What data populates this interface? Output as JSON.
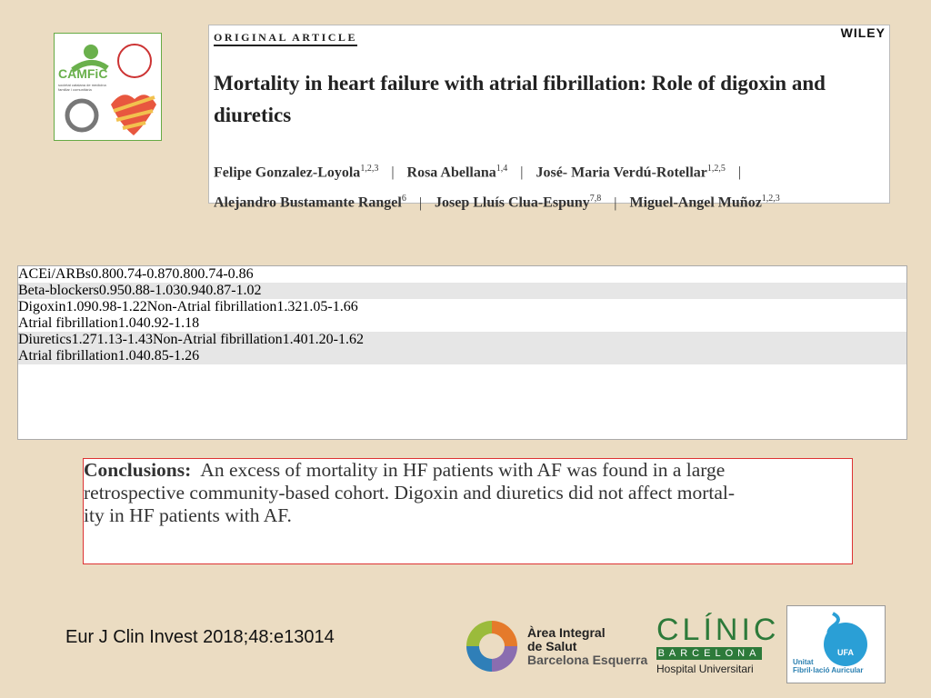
{
  "logos_top": {
    "camfic": "CAMFiC",
    "camfic_sub": "societat catalana de medicina familiar i comunitària"
  },
  "article": {
    "label": "ORIGINAL ARTICLE",
    "publisher": "WILEY",
    "title": "Mortality in heart failure with atrial fibrillation: Role of digoxin and diuretics",
    "separator": "|",
    "authors": [
      [
        {
          "name": "Felipe Gonzalez-Loyola",
          "sup": "1,2,3"
        },
        {
          "name": "Rosa Abellana",
          "sup": "1,4"
        },
        {
          "name": "José- Maria Verdú-Rotellar",
          "sup": "1,2,5"
        }
      ],
      [
        {
          "name": "Alejandro Bustamante Rangel",
          "sup": "6"
        },
        {
          "name": "Josep Lluís Clua-Espuny",
          "sup": "7,8"
        },
        {
          "name": "Miguel-Angel Muñoz",
          "sup": "1,2,3"
        }
      ]
    ]
  },
  "table": {
    "rows": [
      [
        "ACEi/ARBs",
        "0.80",
        "0.74-0.87",
        "",
        "0.80",
        "0.74-0.86"
      ],
      [
        "Beta-blockers",
        "0.95",
        "0.88-1.03",
        "",
        "0.94",
        "0.87-1.02"
      ],
      [
        "Digoxin",
        "1.09",
        "0.98-1.22",
        "Non-Atrial fibrillation",
        "1.32",
        "1.05-1.66"
      ],
      [
        "",
        "",
        "",
        "Atrial fibrillation",
        "1.04",
        "0.92-1.18"
      ],
      [
        "Diuretics",
        "1.27",
        "1.13-1.43",
        "Non-Atrial fibrillation",
        "1.40",
        "1.20-1.62"
      ],
      [
        "",
        "",
        "",
        "Atrial fibrillation",
        "1.04",
        "0.85-1.26"
      ]
    ]
  },
  "conclusions": {
    "label": "Conclusions:",
    "lines": [
      "An excess of mortality in HF patients with AF was found in a large",
      "retrospective community-based cohort. Digoxin and diuretics did not affect mortal-",
      "ity in HF patients with AF."
    ]
  },
  "citation": "Eur J Clin Invest 2018;48:e13014",
  "logos_bottom": {
    "area": [
      "Àrea Integral",
      "de Salut",
      "Barcelona Esquerra"
    ],
    "clinic": "CLÍNIC",
    "clinic_city": "BARCELONA",
    "clinic_sub": "Hospital Universitari",
    "ufa": "UFA",
    "ufa_unit": [
      "Unitat",
      "Fibril·lació Auricular"
    ]
  }
}
